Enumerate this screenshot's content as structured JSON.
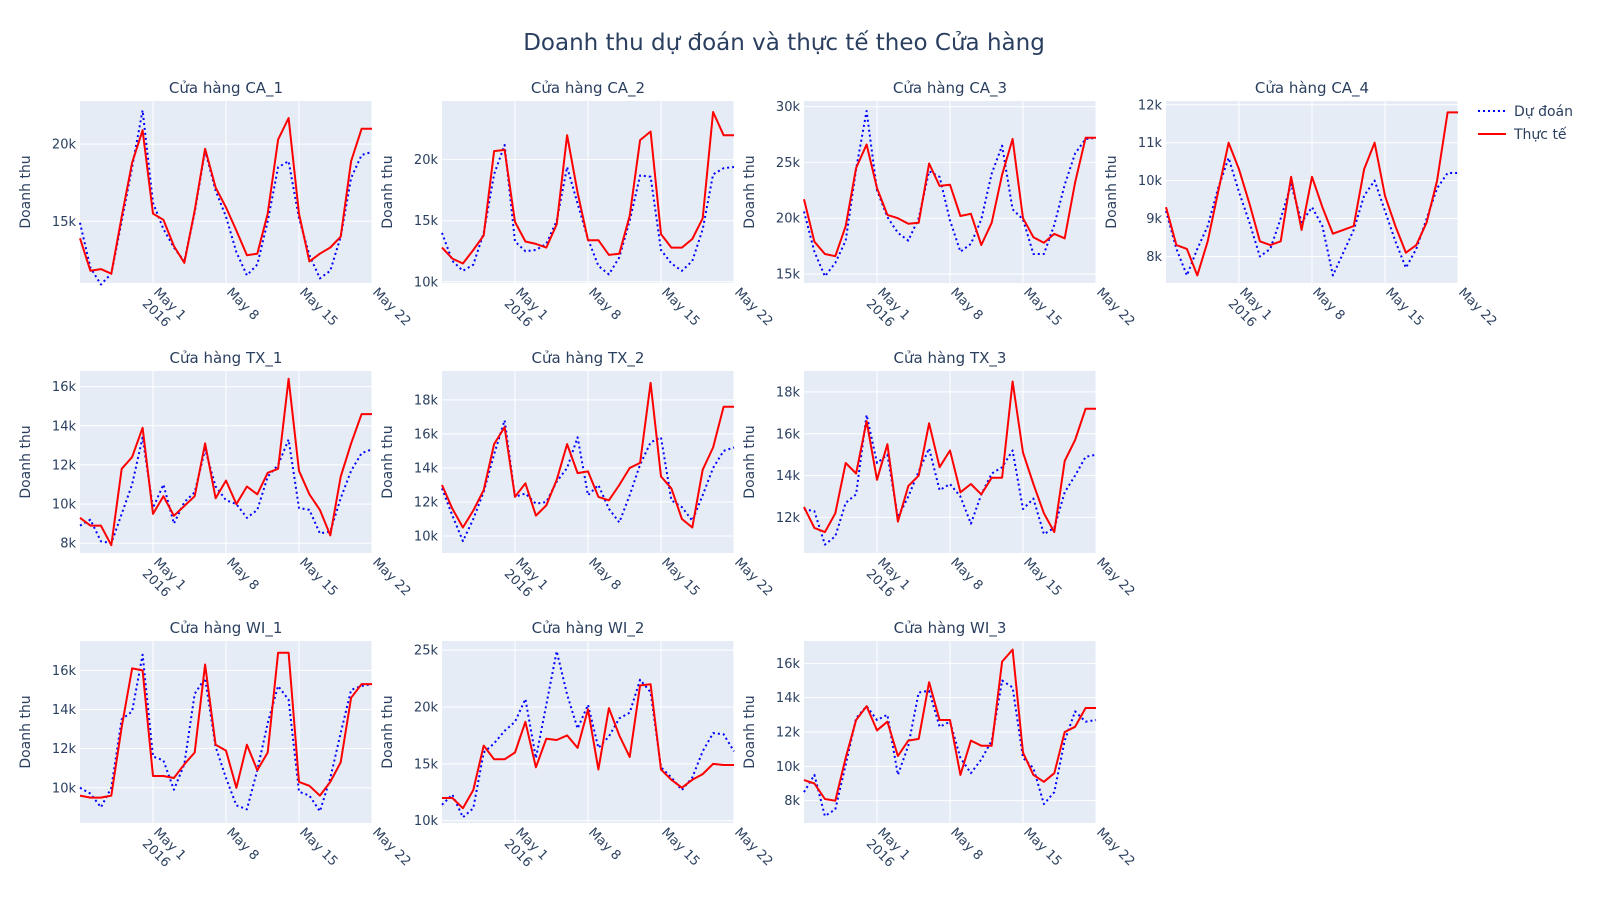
{
  "chart_data": {
    "type": "line",
    "title": "Doanh thu dự đoán và thực tế theo Cửa hàng",
    "ylabel": "Doanh thu",
    "x": [
      "2016-04-24",
      "2016-04-25",
      "2016-04-26",
      "2016-04-27",
      "2016-04-28",
      "2016-04-29",
      "2016-04-30",
      "2016-05-01",
      "2016-05-02",
      "2016-05-03",
      "2016-05-04",
      "2016-05-05",
      "2016-05-06",
      "2016-05-07",
      "2016-05-08",
      "2016-05-09",
      "2016-05-10",
      "2016-05-11",
      "2016-05-12",
      "2016-05-13",
      "2016-05-14",
      "2016-05-15",
      "2016-05-16",
      "2016-05-17",
      "2016-05-18",
      "2016-05-19",
      "2016-05-20",
      "2016-05-21",
      "2016-05-22"
    ],
    "xtick_values": [
      "2016-05-01",
      "2016-05-08",
      "2016-05-15",
      "2016-05-22"
    ],
    "xtick_labels": [
      [
        "May 1",
        "2016"
      ],
      [
        "May 8"
      ],
      [
        "May 15"
      ],
      [
        "May 22"
      ]
    ],
    "legend": {
      "position": "top-right",
      "entries": [
        {
          "name": "Dự đoán",
          "color": "#0000ff",
          "dash": "dot"
        },
        {
          "name": "Thực tế",
          "color": "#ff0000",
          "dash": "solid"
        }
      ]
    },
    "panels": [
      {
        "title": "Cửa hàng CA_1",
        "ylim": [
          11000,
          22800
        ],
        "yticks": [
          15000,
          20000
        ],
        "ytick_labels": [
          "15k",
          "20k"
        ],
        "series": [
          {
            "name": "Dự đoán",
            "values": [
              14900,
              12000,
              10900,
              11600,
              15000,
              18500,
              22200,
              16200,
              14500,
              13300,
              12400,
              15600,
              19600,
              17000,
              15300,
              13000,
              11500,
              12200,
              15000,
              18500,
              18900,
              15200,
              12800,
              11300,
              11800,
              14000,
              17800,
              19300,
              19500
            ]
          },
          {
            "name": "Thực tế",
            "values": [
              13900,
              11800,
              11900,
              11600,
              15300,
              18800,
              20900,
              15500,
              15100,
              13400,
              12300,
              15700,
              19700,
              17200,
              15900,
              14400,
              12800,
              12900,
              15500,
              20300,
              21700,
              15500,
              12400,
              12900,
              13300,
              14000,
              18900,
              21000,
              21000
            ]
          }
        ]
      },
      {
        "title": "Cửa hàng CA_2",
        "ylim": [
          9900,
          24800
        ],
        "yticks": [
          10000,
          15000,
          20000
        ],
        "ytick_labels": [
          "10k",
          "15k",
          "20k"
        ],
        "series": [
          {
            "name": "Dự đoán",
            "values": [
              14000,
              11700,
              10900,
              11400,
              14000,
              18800,
              21200,
              13300,
              12500,
              12600,
              13100,
              15000,
              19400,
              16400,
              13500,
              11300,
              10600,
              12000,
              15000,
              18700,
              18600,
              12600,
              11500,
              10900,
              11700,
              14300,
              18800,
              19300,
              19400
            ]
          },
          {
            "name": "Thực tế",
            "values": [
              12800,
              11900,
              11500,
              12600,
              13800,
              20700,
              20800,
              14900,
              13300,
              13100,
              12800,
              14700,
              22000,
              17300,
              13400,
              13400,
              12200,
              12300,
              15400,
              21600,
              22300,
              13900,
              12800,
              12800,
              13500,
              15200,
              23900,
              22000,
              22000
            ]
          }
        ]
      },
      {
        "title": "Cửa hàng CA_3",
        "ylim": [
          14200,
          30500
        ],
        "yticks": [
          15000,
          20000,
          25000,
          30000
        ],
        "ytick_labels": [
          "15k",
          "20k",
          "25k",
          "30k"
        ],
        "series": [
          {
            "name": "Dự đoán",
            "values": [
              20600,
              17000,
              14800,
              16000,
              18000,
              24400,
              29600,
              22500,
              20100,
              18700,
              18000,
              20000,
              24200,
              23700,
              19800,
              17000,
              17700,
              19900,
              24000,
              26500,
              20800,
              19900,
              16800,
              16800,
              19400,
              23000,
              25800,
              27100,
              27200
            ]
          },
          {
            "name": "Thực tế",
            "values": [
              21700,
              17900,
              16800,
              16600,
              19300,
              24500,
              26600,
              22700,
              20300,
              20000,
              19500,
              19600,
              24900,
              22900,
              23000,
              20200,
              20400,
              17600,
              19600,
              23900,
              27100,
              20000,
              18300,
              17800,
              18600,
              18200,
              23200,
              27200,
              27200
            ]
          }
        ]
      },
      {
        "title": "Cửa hàng CA_4",
        "ylim": [
          7300,
          12100
        ],
        "yticks": [
          8000,
          9000,
          10000,
          11000,
          12000
        ],
        "ytick_labels": [
          "8k",
          "9k",
          "10k",
          "11k",
          "12k"
        ],
        "series": [
          {
            "name": "Dự đoán",
            "values": [
              9200,
              8200,
              7500,
              8200,
              8800,
              9800,
              10600,
              9700,
              8900,
              8000,
              8200,
              9000,
              9900,
              8900,
              9300,
              8800,
              7500,
              8100,
              8700,
              9600,
              10000,
              9200,
              8400,
              7700,
              8200,
              9000,
              9800,
              10200,
              10200
            ]
          },
          {
            "name": "Thực tế",
            "values": [
              9300,
              8300,
              8200,
              7500,
              8400,
              9700,
              11000,
              10300,
              9400,
              8400,
              8300,
              8400,
              10100,
              8700,
              10100,
              9300,
              8600,
              8700,
              8800,
              10300,
              11000,
              9600,
              8800,
              8100,
              8300,
              8900,
              10000,
              11800,
              11800
            ]
          }
        ]
      },
      {
        "title": "Cửa hàng TX_1",
        "ylim": [
          7500,
          16800
        ],
        "yticks": [
          8000,
          10000,
          12000,
          14000,
          16000
        ],
        "ytick_labels": [
          "8k",
          "10k",
          "12k",
          "14k",
          "16k"
        ],
        "series": [
          {
            "name": "Dự đoán",
            "values": [
              8900,
              9200,
              8100,
              8000,
              9500,
              11000,
              13400,
              9800,
              11000,
              9000,
              10100,
              10600,
              12800,
              10900,
              10200,
              10000,
              9300,
              9700,
              11400,
              12000,
              13300,
              9800,
              9700,
              8500,
              8600,
              10300,
              11700,
              12600,
              12800
            ]
          },
          {
            "name": "Thực tế",
            "values": [
              9300,
              8900,
              8900,
              7900,
              11800,
              12400,
              13900,
              9500,
              10400,
              9400,
              9900,
              10400,
              13100,
              10300,
              11200,
              10000,
              10900,
              10500,
              11600,
              11800,
              16400,
              11700,
              10500,
              9700,
              8400,
              11400,
              13100,
              14600,
              14600
            ]
          }
        ]
      },
      {
        "title": "Cửa hàng TX_2",
        "ylim": [
          9000,
          19700
        ],
        "yticks": [
          10000,
          12000,
          14000,
          16000,
          18000
        ],
        "ytick_labels": [
          "10k",
          "12k",
          "14k",
          "16k",
          "18k"
        ],
        "series": [
          {
            "name": "Dự đoán",
            "values": [
              12800,
              11200,
              9700,
              11000,
              12600,
              14800,
              16800,
              12300,
              12500,
              11900,
              12000,
              13200,
              14000,
              15800,
              12400,
              13000,
              11600,
              10800,
              12400,
              14200,
              15500,
              15800,
              12100,
              11700,
              10900,
              12400,
              14000,
              15000,
              15200
            ]
          },
          {
            "name": "Thực tế",
            "values": [
              13000,
              11600,
              10500,
              11500,
              12700,
              15400,
              16400,
              12300,
              13100,
              11200,
              11800,
              13300,
              15400,
              13700,
              13800,
              12300,
              12100,
              13000,
              14000,
              14300,
              19000,
              13500,
              12800,
              11000,
              10500,
              13900,
              15200,
              17600,
              17600
            ]
          }
        ]
      },
      {
        "title": "Cửa hàng TX_3",
        "ylim": [
          10300,
          19000
        ],
        "yticks": [
          12000,
          14000,
          16000,
          18000
        ],
        "ytick_labels": [
          "12k",
          "14k",
          "16k",
          "18k"
        ],
        "series": [
          {
            "name": "Dự đoán",
            "values": [
              12400,
              12300,
              10700,
              11100,
              12700,
              13100,
              16900,
              14600,
              15000,
              12000,
              13000,
              14200,
              15300,
              13300,
              13600,
              13000,
              11700,
              13100,
              14100,
              14400,
              15200,
              12400,
              12900,
              11200,
              11500,
              13200,
              14000,
              14900,
              15000
            ]
          },
          {
            "name": "Thực tế",
            "values": [
              12500,
              11500,
              11300,
              12200,
              14600,
              14100,
              16600,
              13800,
              15500,
              11800,
              13500,
              14000,
              16500,
              14400,
              15200,
              13200,
              13600,
              13100,
              13900,
              13900,
              18500,
              15100,
              13600,
              12200,
              11300,
              14700,
              15700,
              17200,
              17200
            ]
          }
        ]
      },
      {
        "title": "Cửa hàng WI_1",
        "ylim": [
          8200,
          17500
        ],
        "yticks": [
          10000,
          12000,
          14000,
          16000
        ],
        "ytick_labels": [
          "10k",
          "12k",
          "14k",
          "16k"
        ],
        "series": [
          {
            "name": "Dự đoán",
            "values": [
              10000,
              9700,
              9000,
              10000,
              13500,
              13900,
              16800,
              11600,
              11400,
              9900,
              11200,
              14800,
              15600,
              12100,
              10500,
              9100,
              8900,
              10900,
              13300,
              15200,
              14500,
              9800,
              9600,
              8800,
              10500,
              12800,
              15000,
              15200,
              15300
            ]
          },
          {
            "name": "Thực tế",
            "values": [
              9600,
              9500,
              9500,
              9600,
              13100,
              16100,
              16000,
              10600,
              10600,
              10500,
              11200,
              11800,
              16300,
              12200,
              11900,
              10000,
              12200,
              10900,
              11800,
              16900,
              16900,
              10300,
              10100,
              9600,
              10300,
              11300,
              14600,
              15300,
              15300
            ]
          }
        ]
      },
      {
        "title": "Cửa hàng WI_2",
        "ylim": [
          9800,
          25800
        ],
        "yticks": [
          10000,
          15000,
          20000,
          25000
        ],
        "ytick_labels": [
          "10k",
          "15k",
          "20k",
          "25k"
        ],
        "series": [
          {
            "name": "Dự đoán",
            "values": [
              11400,
              12300,
              10300,
              11100,
              16000,
              16800,
              17900,
              18700,
              20700,
              15500,
              20200,
              24900,
              21100,
              18100,
              20200,
              16400,
              17400,
              19000,
              19500,
              22400,
              21300,
              14700,
              13800,
              12700,
              13800,
              16100,
              17700,
              17600,
              16100
            ]
          },
          {
            "name": "Thực tế",
            "values": [
              12000,
              12000,
              11100,
              12700,
              16600,
              15400,
              15400,
              16000,
              18700,
              14700,
              17200,
              17100,
              17500,
              16400,
              19800,
              14500,
              19900,
              17500,
              15600,
              21900,
              22000,
              14500,
              13600,
              12900,
              13600,
              14100,
              15000,
              14900,
              14900
            ]
          }
        ]
      },
      {
        "title": "Cửa hàng WI_3",
        "ylim": [
          6700,
          17300
        ],
        "yticks": [
          8000,
          10000,
          12000,
          14000,
          16000
        ],
        "ytick_labels": [
          "8k",
          "10k",
          "12k",
          "14k",
          "16k"
        ],
        "series": [
          {
            "name": "Dự đoán",
            "values": [
              8500,
              9500,
              7100,
              7500,
              10100,
              12800,
              13500,
              12700,
              13000,
              9500,
              11200,
              14300,
              14400,
              12300,
              12600,
              10500,
              9600,
              10400,
              11500,
              15000,
              14600,
              10500,
              9900,
              7800,
              8500,
              11500,
              13200,
              12600,
              12700
            ]
          },
          {
            "name": "Thực tế",
            "values": [
              9200,
              9000,
              8100,
              8000,
              10500,
              12700,
              13500,
              12100,
              12600,
              10600,
              11500,
              11600,
              14900,
              12700,
              12700,
              9500,
              11500,
              11200,
              11200,
              16100,
              16800,
              10800,
              9500,
              9100,
              9600,
              12000,
              12300,
              13400,
              13400
            ]
          }
        ]
      }
    ]
  }
}
